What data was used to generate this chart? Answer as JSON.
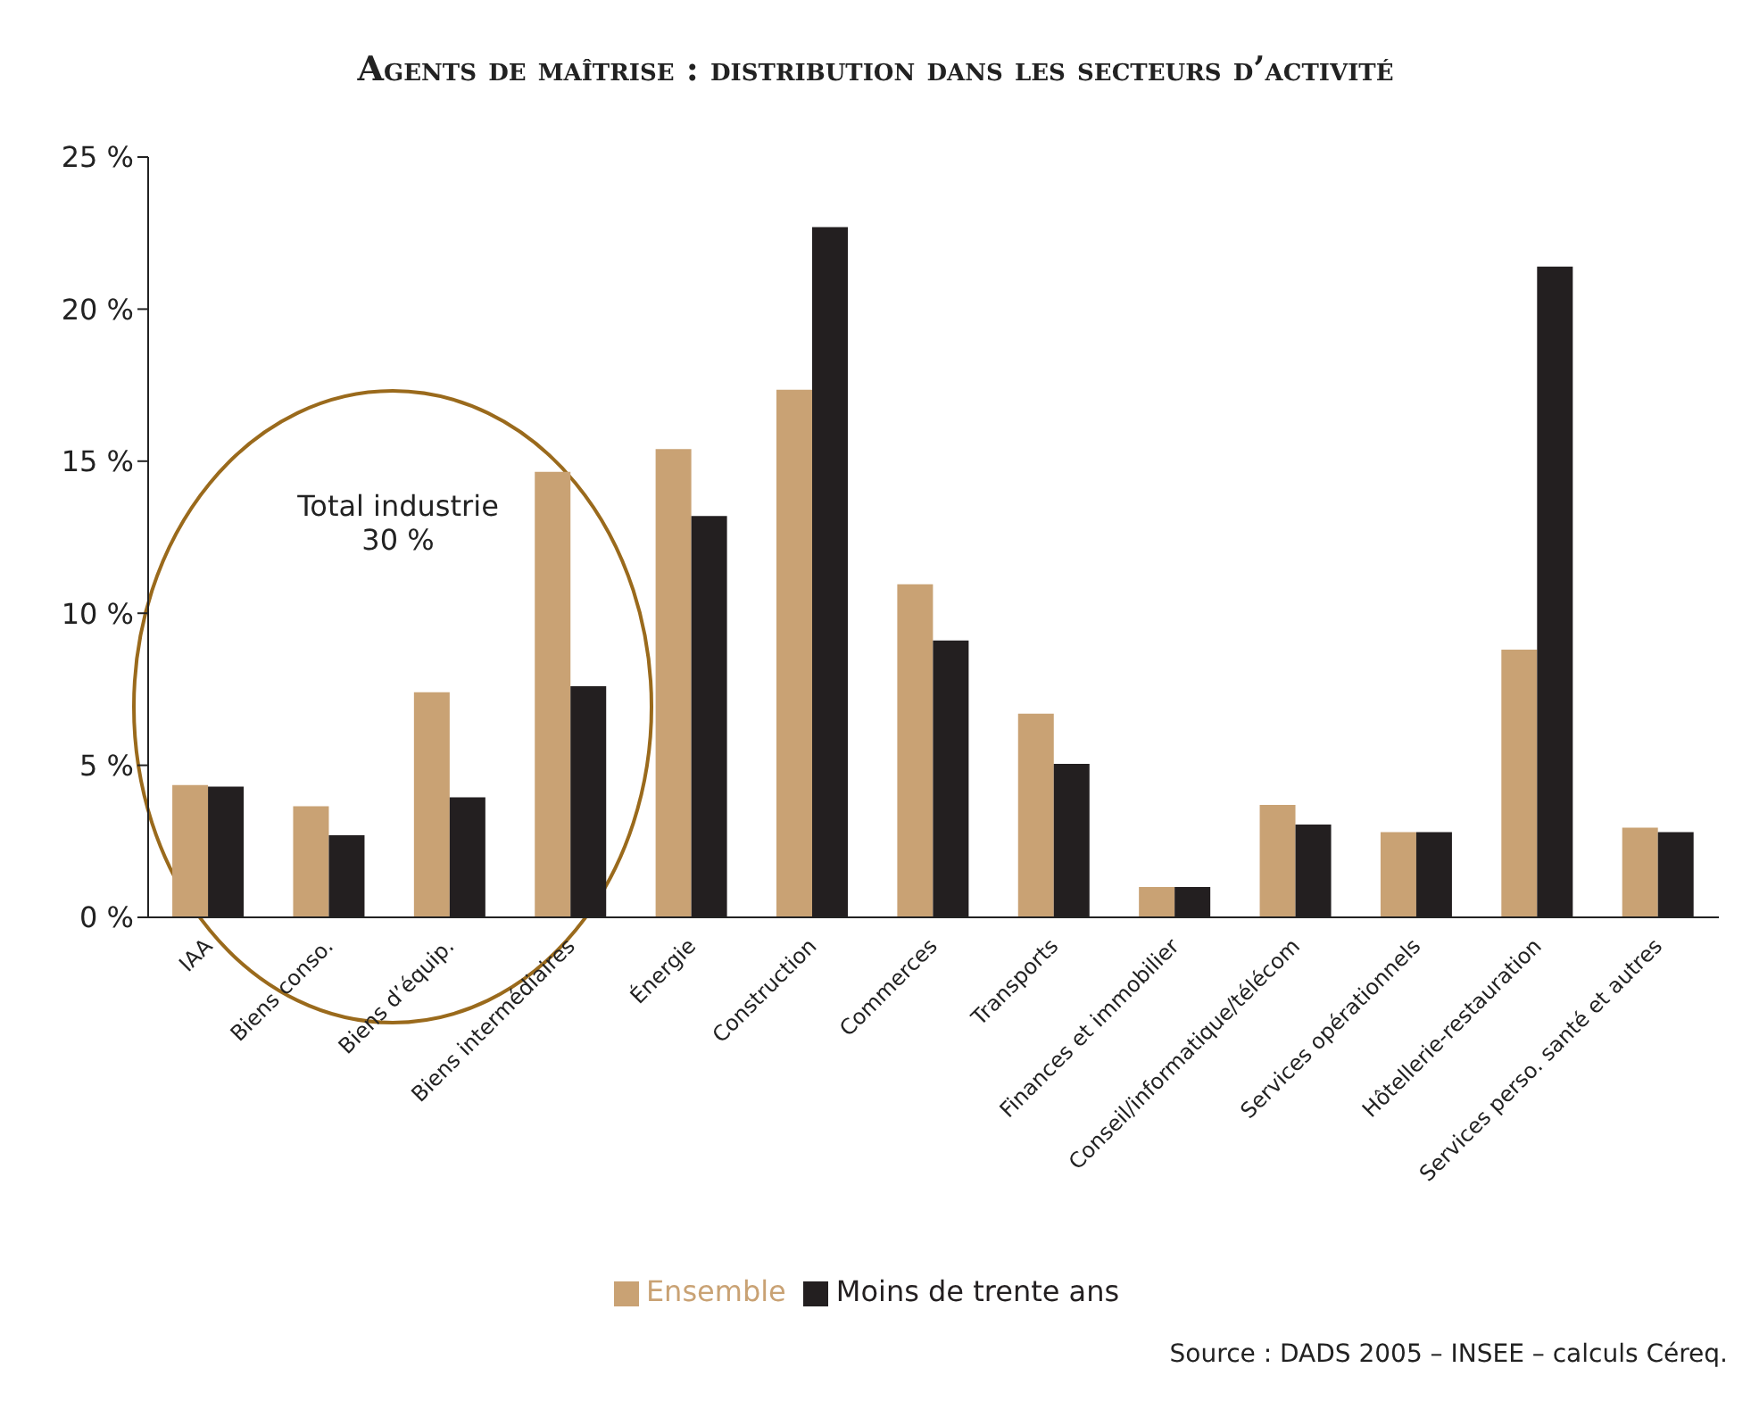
{
  "chart_data": {
    "type": "bar",
    "title": "Agents de maîtrise : distribution dans les secteurs d’activité",
    "categories": [
      "IAA",
      "Biens conso.",
      "Biens d’équip.",
      "Biens intermédiaires",
      "Énergie",
      "Construction",
      "Commerces",
      "Transports",
      "Finances et immobilier",
      "Conseil/informatique/télécom",
      "Services opérationnels",
      "Hôtellerie-restauration",
      "Services perso. santé et autres"
    ],
    "series": [
      {
        "name": "Ensemble",
        "color": "#c9a274",
        "values": [
          4.35,
          3.65,
          7.4,
          14.65,
          15.4,
          17.35,
          10.95,
          6.7,
          1.0,
          3.7,
          2.8,
          8.8,
          2.95
        ]
      },
      {
        "name": "Moins de trente ans",
        "color": "#231f20",
        "values": [
          4.3,
          2.7,
          3.95,
          7.6,
          13.2,
          22.7,
          9.1,
          5.05,
          1.0,
          3.05,
          2.8,
          21.4,
          2.8
        ]
      }
    ],
    "ylim": [
      0,
      25
    ],
    "yticks": [
      {
        "value": 0,
        "label": "0 %"
      },
      {
        "value": 5,
        "label": "5 %"
      },
      {
        "value": 10,
        "label": "10 %"
      },
      {
        "value": 15,
        "label": "15 %"
      },
      {
        "value": 20,
        "label": "20 %"
      },
      {
        "value": 25,
        "label": "25 %"
      }
    ],
    "legend": "bottom",
    "annotations": [
      "Total industrie\n30 %",
      "Source : DADS 2005 – INSEE – calculs Céreq."
    ]
  }
}
